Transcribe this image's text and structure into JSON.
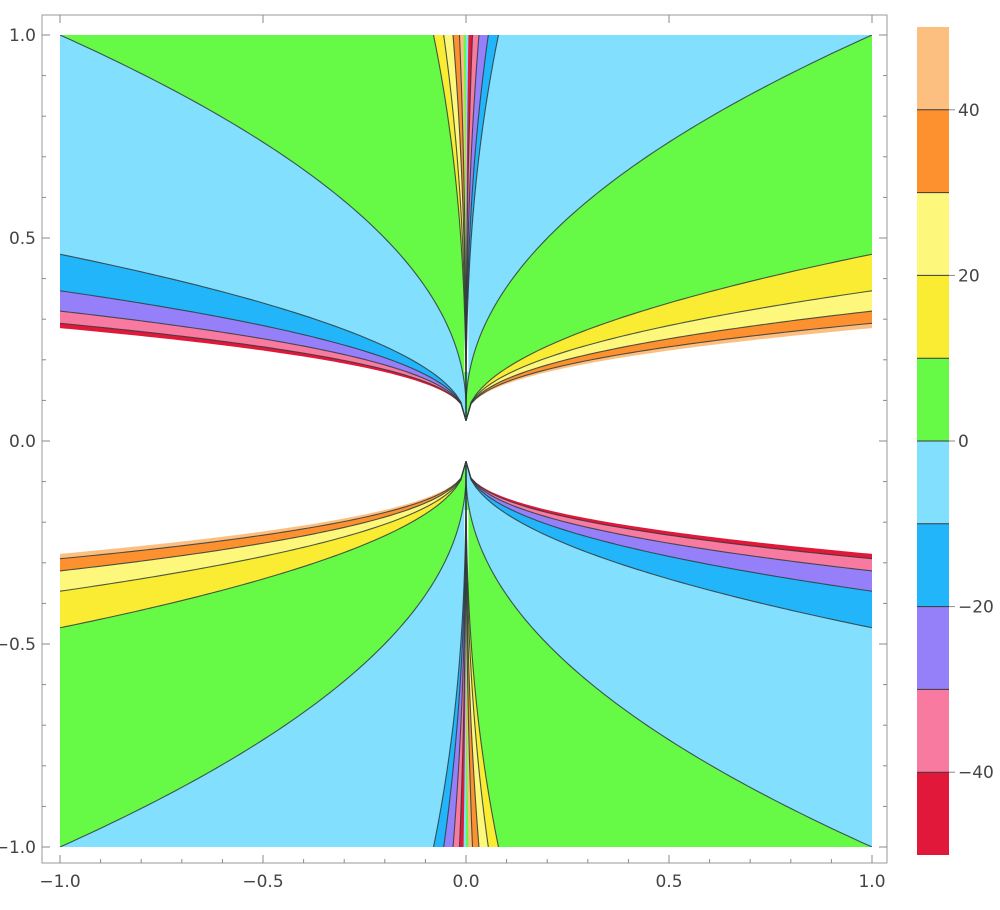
{
  "chart_data": {
    "type": "contour",
    "title": "",
    "xlabel": "",
    "ylabel": "",
    "xlim": [
      -1.0,
      1.0
    ],
    "ylim": [
      -1.0,
      1.0
    ],
    "x_ticks": [
      "-1.0",
      "-0.5",
      "0.0",
      "0.5",
      "1.0"
    ],
    "y_ticks": [
      "-1.0",
      "-0.5",
      "0.0",
      "0.5",
      "1.0"
    ],
    "contour_levels": [
      -50,
      -40,
      -30,
      -20,
      -10,
      0,
      10,
      20,
      30,
      40,
      50
    ],
    "legend_ticks": [
      "-40",
      "-20",
      "0",
      "20",
      "40"
    ],
    "legend_placement": "right",
    "grid": false,
    "band_colors": {
      "-50..-40": "#e2183a",
      "-40..-30": "#f97aa0",
      "-30..-20": "#9680fa",
      "-20..-10": "#22b5fa",
      "-10..0": "#82dffd",
      "0..10": "#66f946",
      "10..20": "#f9ec32",
      "20..30": "#fdf77c",
      "30..40": "#fd9130",
      "40..50": "#fdbf80"
    },
    "boundary_curves_right_half": [
      {
        "level": 0,
        "points": [
          [
            0.0,
            0.08
          ],
          [
            0.03,
            0.2
          ],
          [
            0.25,
            0.55
          ],
          [
            0.6,
            0.85
          ],
          [
            1.0,
            1.0
          ]
        ]
      },
      {
        "level": 10,
        "points": [
          [
            0.0,
            0.05
          ],
          [
            0.1,
            0.22
          ],
          [
            0.5,
            0.38
          ],
          [
            1.0,
            0.46
          ]
        ]
      },
      {
        "level": 20,
        "points": [
          [
            0.0,
            0.05
          ],
          [
            0.1,
            0.17
          ],
          [
            0.5,
            0.3
          ],
          [
            1.0,
            0.37
          ]
        ]
      },
      {
        "level": 30,
        "points": [
          [
            0.0,
            0.05
          ],
          [
            0.1,
            0.15
          ],
          [
            0.5,
            0.26
          ],
          [
            1.0,
            0.32
          ]
        ]
      },
      {
        "level": 40,
        "points": [
          [
            0.0,
            0.05
          ],
          [
            0.1,
            0.14
          ],
          [
            0.5,
            0.24
          ],
          [
            1.0,
            0.29
          ]
        ]
      }
    ]
  }
}
